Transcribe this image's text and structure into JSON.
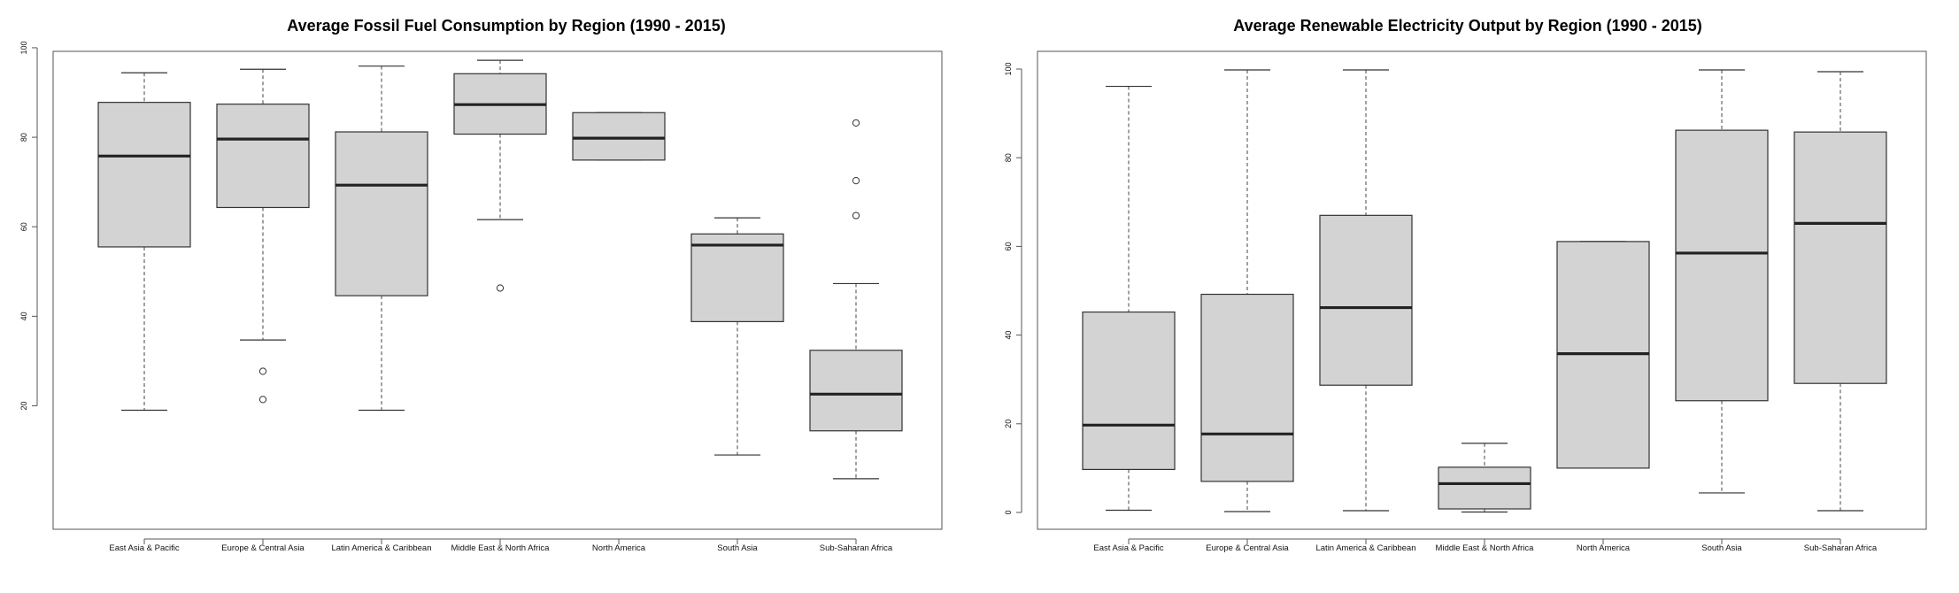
{
  "colors": {
    "box_fill": "#d3d3d3",
    "box_stroke": "#333333",
    "median": "#222222",
    "whisker": "#444444",
    "frame": "#555555"
  },
  "chart_data": [
    {
      "type": "boxplot",
      "title": "Average Fossil Fuel Consumption by Region (1990 - 2015)",
      "xlabel": "",
      "ylabel": "",
      "ylim": [
        0,
        100
      ],
      "yticks": [
        20,
        40,
        60,
        80,
        100
      ],
      "ytick_labels": [
        "20",
        "40",
        "60",
        "80",
        "100"
      ],
      "grid": false,
      "categories": [
        "East Asia & Pacific",
        "Europe & Central Asia",
        "Latin America & Caribbean",
        "Middle East & North Africa",
        "North America",
        "South Asia",
        "Sub-Saharan Africa"
      ],
      "boxes": [
        {
          "whisker_low": 19,
          "q1": 55.5,
          "median": 75.8,
          "q3": 87.8,
          "whisker_high": 94.4,
          "outliers": []
        },
        {
          "whisker_low": 34.7,
          "q1": 64.3,
          "median": 79.6,
          "q3": 87.4,
          "whisker_high": 95.2,
          "outliers": [
            27.7,
            21.4
          ]
        },
        {
          "whisker_low": 19,
          "q1": 44.6,
          "median": 69.3,
          "q3": 81.2,
          "whisker_high": 95.9,
          "outliers": []
        },
        {
          "whisker_low": 61.6,
          "q1": 80.7,
          "median": 87.3,
          "q3": 94.2,
          "whisker_high": 97.2,
          "outliers": [
            46.3
          ]
        },
        {
          "whisker_low": 74.9,
          "q1": 74.9,
          "median": 79.8,
          "q3": 85.5,
          "whisker_high": 85.5,
          "outliers": []
        },
        {
          "whisker_low": 9,
          "q1": 38.8,
          "median": 55.9,
          "q3": 58.4,
          "whisker_high": 62,
          "outliers": []
        },
        {
          "whisker_low": 3.7,
          "q1": 14.4,
          "median": 22.6,
          "q3": 32.4,
          "whisker_high": 47.3,
          "outliers": [
            83.2,
            70.3,
            62.5
          ]
        }
      ]
    },
    {
      "type": "boxplot",
      "title": "Average Renewable Electricity Output by Region (1990 - 2015)",
      "xlabel": "",
      "ylabel": "",
      "ylim": [
        0,
        100
      ],
      "yticks": [
        0,
        20,
        40,
        60,
        80,
        100
      ],
      "ytick_labels": [
        "0",
        "20",
        "40",
        "60",
        "80",
        "100"
      ],
      "grid": false,
      "categories": [
        "East Asia & Pacific",
        "Europe & Central Asia",
        "Latin America & Caribbean",
        "Middle East & North Africa",
        "North America",
        "South Asia",
        "Sub-Saharan Africa"
      ],
      "boxes": [
        {
          "whisker_low": 0.5,
          "q1": 9.7,
          "median": 19.7,
          "q3": 45.2,
          "whisker_high": 96.1,
          "outliers": []
        },
        {
          "whisker_low": 0.2,
          "q1": 7,
          "median": 17.7,
          "q3": 49.2,
          "whisker_high": 99.8,
          "outliers": []
        },
        {
          "whisker_low": 0.4,
          "q1": 28.7,
          "median": 46.2,
          "q3": 67,
          "whisker_high": 99.8,
          "outliers": []
        },
        {
          "whisker_low": 0.1,
          "q1": 0.8,
          "median": 6.5,
          "q3": 10.2,
          "whisker_high": 15.6,
          "outliers": []
        },
        {
          "whisker_low": 10,
          "q1": 10,
          "median": 35.8,
          "q3": 61.1,
          "whisker_high": 61.1,
          "outliers": []
        },
        {
          "whisker_low": 4.4,
          "q1": 25.2,
          "median": 58.5,
          "q3": 86.2,
          "whisker_high": 99.8,
          "outliers": []
        },
        {
          "whisker_low": 0.4,
          "q1": 29.1,
          "median": 65.2,
          "q3": 85.8,
          "whisker_high": 99.4,
          "outliers": []
        }
      ]
    }
  ]
}
